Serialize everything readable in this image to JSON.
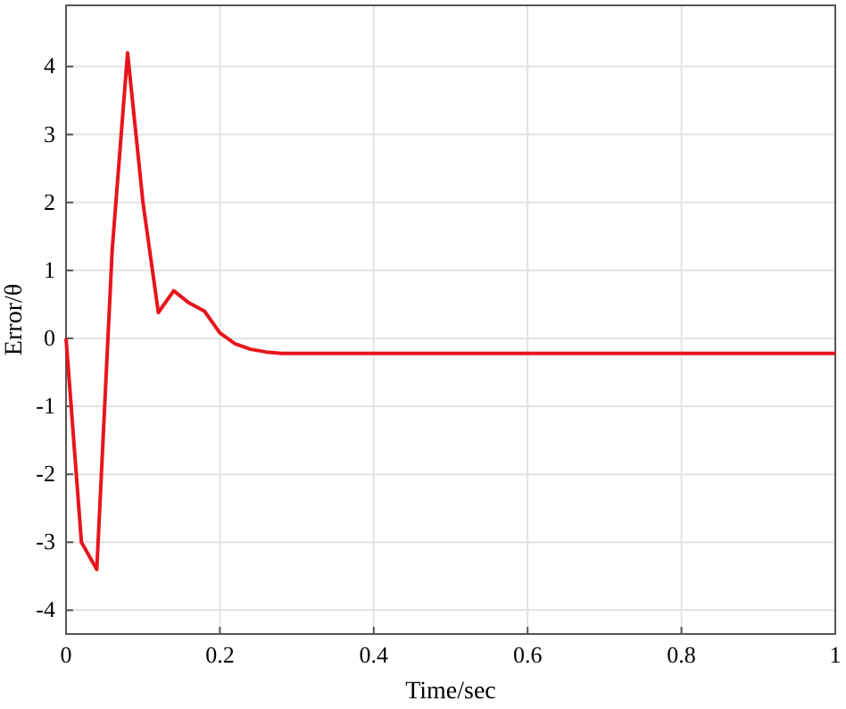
{
  "chart_data": {
    "type": "line",
    "xlabel": "Time/sec",
    "ylabel": "Error/θ",
    "x": [
      0,
      0.02,
      0.04,
      0.06,
      0.08,
      0.1,
      0.12,
      0.14,
      0.16,
      0.18,
      0.2,
      0.22,
      0.24,
      0.26,
      0.28,
      0.4,
      0.6,
      0.8,
      1
    ],
    "series": [
      {
        "color": "#e8141c",
        "values": [
          0,
          -3.0,
          -3.4,
          1.3,
          4.2,
          2.0,
          0.38,
          0.7,
          0.52,
          0.4,
          0.08,
          -0.08,
          -0.16,
          -0.2,
          -0.22,
          -0.22,
          -0.22,
          -0.22,
          -0.22
        ]
      }
    ],
    "xlim": [
      0,
      1
    ],
    "xticks": [
      0,
      0.2,
      0.4,
      0.6,
      0.8,
      1
    ],
    "ylim": [
      -4.35,
      4.9
    ],
    "yticks": [
      -4,
      -3,
      -2,
      -1,
      0,
      1,
      2,
      3,
      4
    ],
    "grid": true,
    "marker": "none",
    "line_style": "solid"
  }
}
